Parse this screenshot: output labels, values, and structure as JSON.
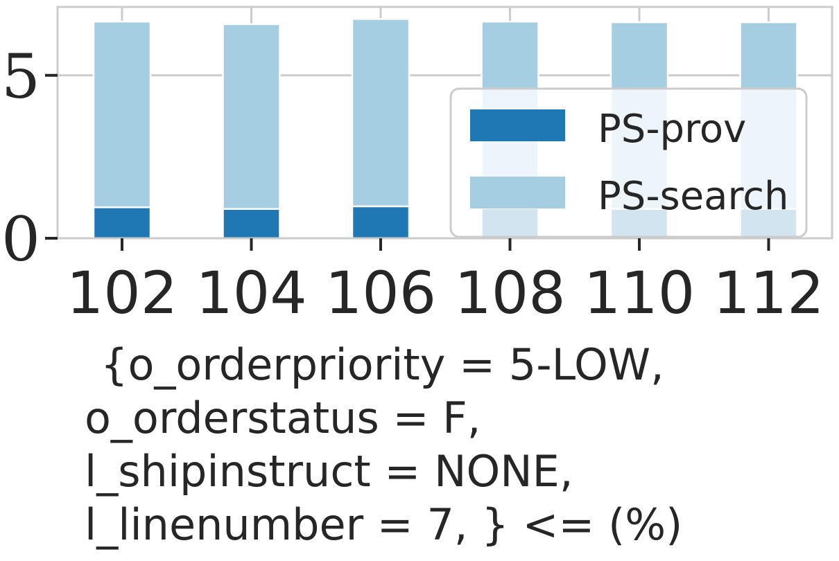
{
  "chart_data": {
    "type": "bar",
    "stacked": true,
    "categories": [
      "102",
      "104",
      "106",
      "108",
      "110",
      "112"
    ],
    "series": [
      {
        "name": "PS-prov",
        "color": "#1f78b4",
        "values": [
          0.95,
          0.9,
          0.98,
          0.92,
          0.9,
          0.9
        ]
      },
      {
        "name": "PS-search",
        "color": "#a6cee3",
        "values": [
          5.7,
          5.67,
          5.75,
          5.73,
          5.73,
          5.73
        ]
      }
    ],
    "ylim": [
      0,
      7.1
    ],
    "yticks": [
      0,
      5
    ],
    "ytick_labels": [
      "0",
      "5"
    ],
    "grid": true,
    "legend_position": "center-right",
    "xlabel_lines": [
      "{o_orderpriority = 5-LOW,",
      "o_orderstatus = F,",
      "l_shipinstruct = NONE,",
      "l_linenumber = 7, } <= (%)"
    ]
  }
}
